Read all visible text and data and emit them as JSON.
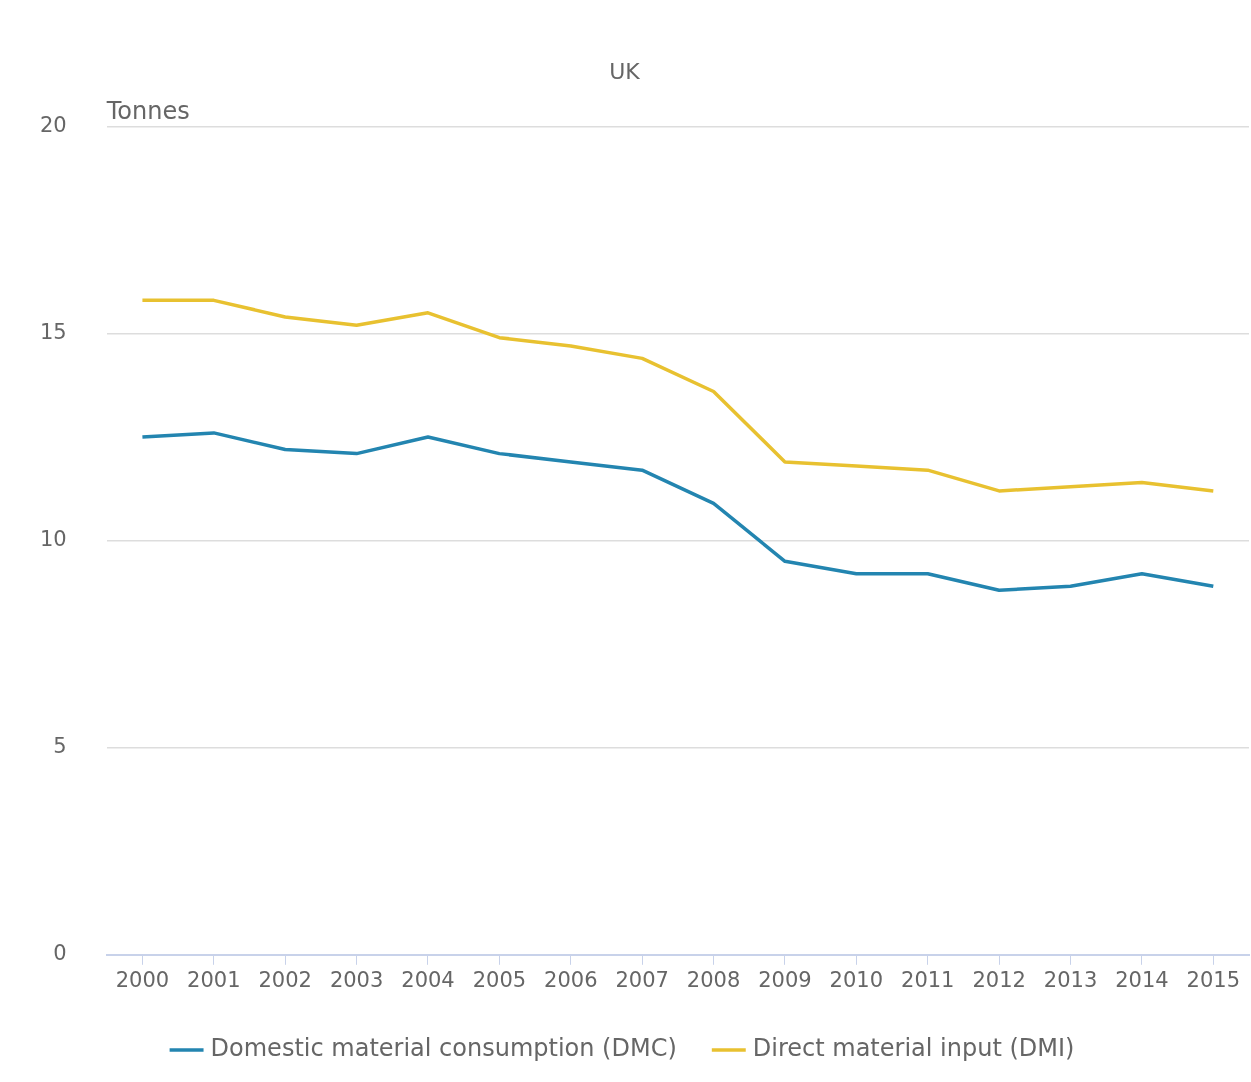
{
  "chart_data": {
    "type": "line",
    "title": "UK",
    "ylabel": "Tonnes",
    "categories": [
      "2000",
      "2001",
      "2002",
      "2003",
      "2004",
      "2005",
      "2006",
      "2007",
      "2008",
      "2009",
      "2010",
      "2011",
      "2012",
      "2013",
      "2014",
      "2015"
    ],
    "series": [
      {
        "name": "Domestic material consumption (DMC)",
        "color": "#2385b0",
        "values": [
          12.5,
          12.6,
          12.2,
          12.1,
          12.5,
          12.1,
          11.9,
          11.7,
          10.9,
          9.5,
          9.2,
          9.2,
          8.8,
          8.9,
          9.2,
          8.9
        ]
      },
      {
        "name": "Direct material input (DMI)",
        "color": "#e8c130",
        "values": [
          15.8,
          15.8,
          15.4,
          15.2,
          15.5,
          14.9,
          14.7,
          14.4,
          13.6,
          11.9,
          11.8,
          11.7,
          11.2,
          11.3,
          11.4,
          11.2
        ]
      }
    ],
    "ylim": [
      0,
      20
    ],
    "yticks": [
      0,
      5,
      10,
      15,
      20
    ],
    "grid": "y",
    "legend": "bottom",
    "marker": "none",
    "line_style": "solid"
  }
}
